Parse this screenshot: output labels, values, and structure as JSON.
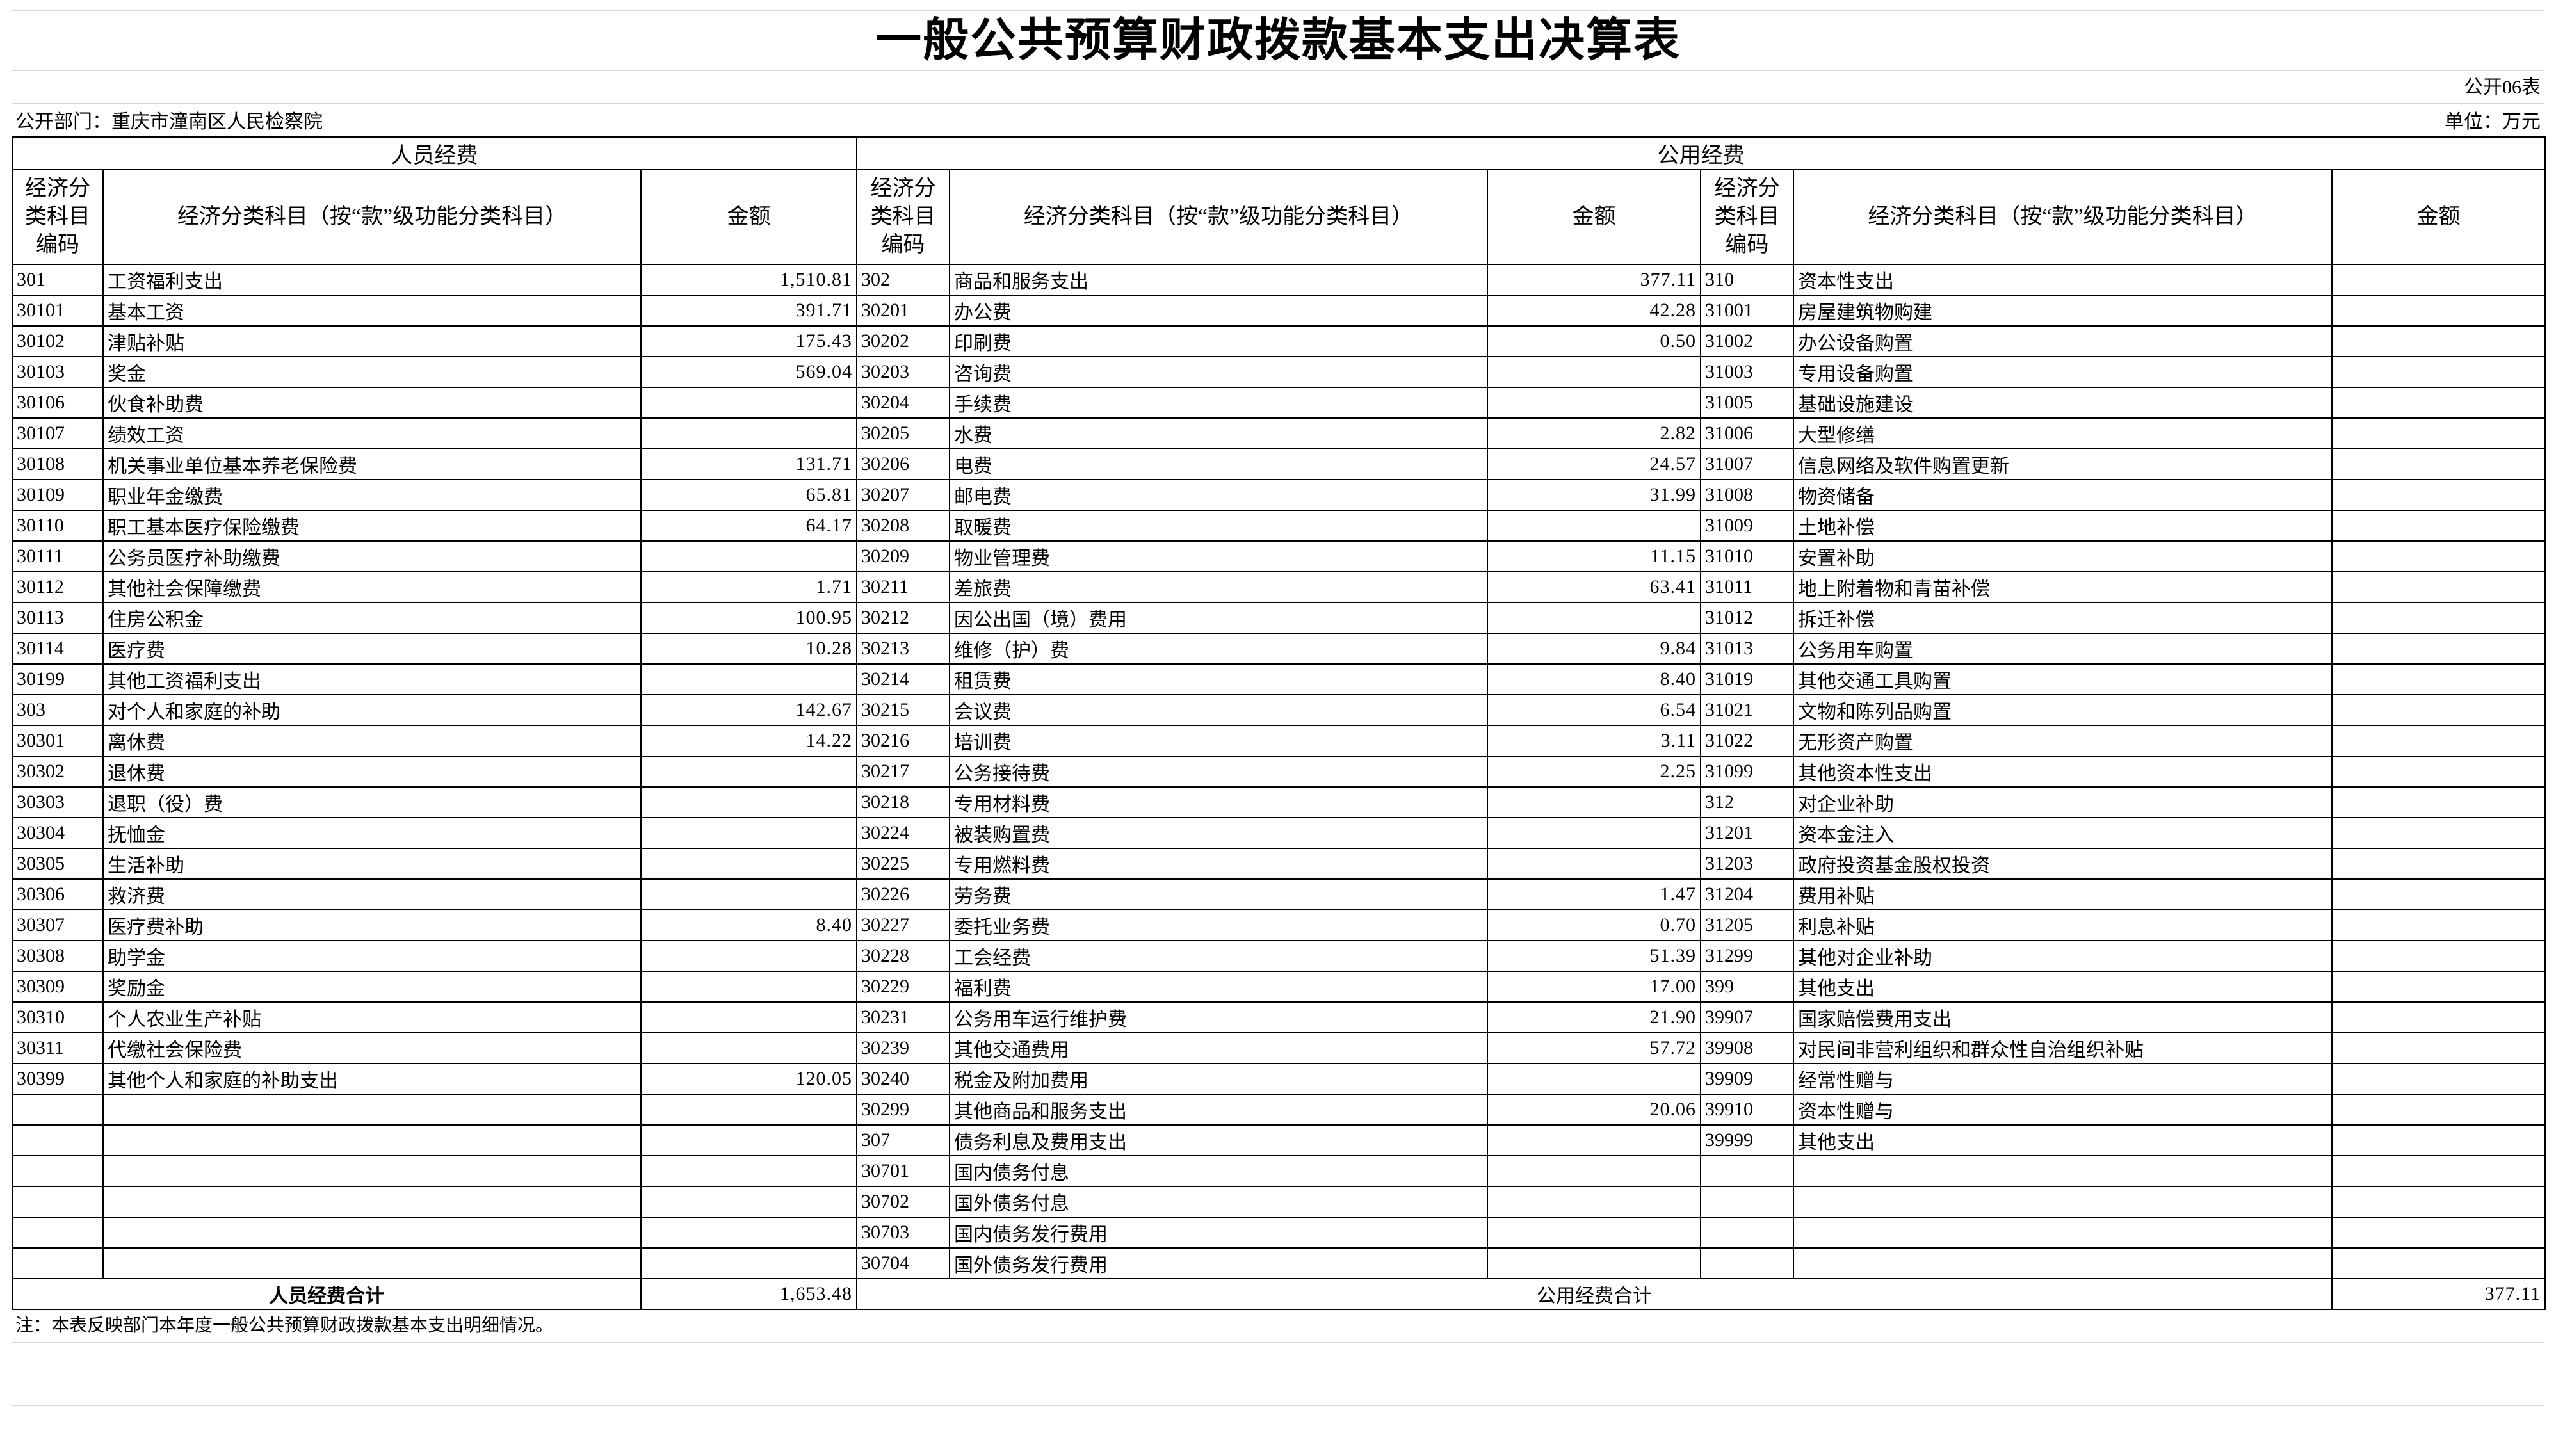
{
  "title": "一般公共预算财政拨款基本支出决算表",
  "table_no": "公开06表",
  "department": "公开部门：重庆市潼南区人民检察院",
  "unit": "单位：万元",
  "sections": {
    "personnel": "人员经费",
    "public": "公用经费"
  },
  "headers": {
    "code": "经济分类科目编码",
    "name": "经济分类科目（按“款”级功能分类科目）",
    "amount": "金额"
  },
  "personnel_rows": [
    {
      "code": "301",
      "name": "工资福利支出",
      "amount": "1,510.81",
      "level": 1
    },
    {
      "code": "30101",
      "name": "基本工资",
      "amount": "391.71",
      "level": 2
    },
    {
      "code": "30102",
      "name": "津贴补贴",
      "amount": "175.43",
      "level": 2
    },
    {
      "code": "30103",
      "name": "奖金",
      "amount": "569.04",
      "level": 2
    },
    {
      "code": "30106",
      "name": "伙食补助费",
      "amount": "",
      "level": 2
    },
    {
      "code": "30107",
      "name": "绩效工资",
      "amount": "",
      "level": 2
    },
    {
      "code": "30108",
      "name": "机关事业单位基本养老保险费",
      "amount": "131.71",
      "level": 2
    },
    {
      "code": "30109",
      "name": "职业年金缴费",
      "amount": "65.81",
      "level": 2
    },
    {
      "code": "30110",
      "name": "职工基本医疗保险缴费",
      "amount": "64.17",
      "level": 2
    },
    {
      "code": "30111",
      "name": "公务员医疗补助缴费",
      "amount": "",
      "level": 2
    },
    {
      "code": "30112",
      "name": "其他社会保障缴费",
      "amount": "1.71",
      "level": 2
    },
    {
      "code": "30113",
      "name": "住房公积金",
      "amount": "100.95",
      "level": 2
    },
    {
      "code": "30114",
      "name": "医疗费",
      "amount": "10.28",
      "level": 2
    },
    {
      "code": "30199",
      "name": "其他工资福利支出",
      "amount": "",
      "level": 2
    },
    {
      "code": "303",
      "name": "对个人和家庭的补助",
      "amount": "142.67",
      "level": 1
    },
    {
      "code": "30301",
      "name": "离休费",
      "amount": "14.22",
      "level": 2
    },
    {
      "code": "30302",
      "name": "退休费",
      "amount": "",
      "level": 2
    },
    {
      "code": "30303",
      "name": "退职（役）费",
      "amount": "",
      "level": 2
    },
    {
      "code": "30304",
      "name": "抚恤金",
      "amount": "",
      "level": 2
    },
    {
      "code": "30305",
      "name": "生活补助",
      "amount": "",
      "level": 2
    },
    {
      "code": "30306",
      "name": "救济费",
      "amount": "",
      "level": 2
    },
    {
      "code": "30307",
      "name": "医疗费补助",
      "amount": "8.40",
      "level": 2
    },
    {
      "code": "30308",
      "name": "助学金",
      "amount": "",
      "level": 2
    },
    {
      "code": "30309",
      "name": "奖励金",
      "amount": "",
      "level": 2
    },
    {
      "code": "30310",
      "name": "个人农业生产补贴",
      "amount": "",
      "level": 2
    },
    {
      "code": "30311",
      "name": "代缴社会保险费",
      "amount": "",
      "level": 2
    },
    {
      "code": "30399",
      "name": "其他个人和家庭的补助支出",
      "amount": "120.05",
      "level": 2
    }
  ],
  "public_rows_a": [
    {
      "code": "302",
      "name": "商品和服务支出",
      "amount": "377.11",
      "level": 1
    },
    {
      "code": "30201",
      "name": "办公费",
      "amount": "42.28",
      "level": 2
    },
    {
      "code": "30202",
      "name": "印刷费",
      "amount": "0.50",
      "level": 2
    },
    {
      "code": "30203",
      "name": "咨询费",
      "amount": "",
      "level": 2
    },
    {
      "code": "30204",
      "name": "手续费",
      "amount": "",
      "level": 2
    },
    {
      "code": "30205",
      "name": "水费",
      "amount": "2.82",
      "level": 2
    },
    {
      "code": "30206",
      "name": "电费",
      "amount": "24.57",
      "level": 2
    },
    {
      "code": "30207",
      "name": "邮电费",
      "amount": "31.99",
      "level": 2
    },
    {
      "code": "30208",
      "name": "取暖费",
      "amount": "",
      "level": 2
    },
    {
      "code": "30209",
      "name": "物业管理费",
      "amount": "11.15",
      "level": 2
    },
    {
      "code": "30211",
      "name": "差旅费",
      "amount": "63.41",
      "level": 2
    },
    {
      "code": "30212",
      "name": "因公出国（境）费用",
      "amount": "",
      "level": 2
    },
    {
      "code": "30213",
      "name": "维修（护）费",
      "amount": "9.84",
      "level": 2
    },
    {
      "code": "30214",
      "name": "租赁费",
      "amount": "8.40",
      "level": 2
    },
    {
      "code": "30215",
      "name": "会议费",
      "amount": "6.54",
      "level": 2
    },
    {
      "code": "30216",
      "name": "培训费",
      "amount": "3.11",
      "level": 2
    },
    {
      "code": "30217",
      "name": "公务接待费",
      "amount": "2.25",
      "level": 2
    },
    {
      "code": "30218",
      "name": "专用材料费",
      "amount": "",
      "level": 2
    },
    {
      "code": "30224",
      "name": "被装购置费",
      "amount": "",
      "level": 2
    },
    {
      "code": "30225",
      "name": "专用燃料费",
      "amount": "",
      "level": 2
    },
    {
      "code": "30226",
      "name": "劳务费",
      "amount": "1.47",
      "level": 2
    },
    {
      "code": "30227",
      "name": "委托业务费",
      "amount": "0.70",
      "level": 2
    },
    {
      "code": "30228",
      "name": "工会经费",
      "amount": "51.39",
      "level": 2
    },
    {
      "code": "30229",
      "name": "福利费",
      "amount": "17.00",
      "level": 2
    },
    {
      "code": "30231",
      "name": "公务用车运行维护费",
      "amount": "21.90",
      "level": 2
    },
    {
      "code": "30239",
      "name": "其他交通费用",
      "amount": "57.72",
      "level": 2
    },
    {
      "code": "30240",
      "name": "税金及附加费用",
      "amount": "",
      "level": 2
    },
    {
      "code": "30299",
      "name": "其他商品和服务支出",
      "amount": "20.06",
      "level": 2
    },
    {
      "code": "307",
      "name": "债务利息及费用支出",
      "amount": "",
      "level": 1
    },
    {
      "code": "30701",
      "name": "国内债务付息",
      "amount": "",
      "level": 2
    },
    {
      "code": "30702",
      "name": "国外债务付息",
      "amount": "",
      "level": 2
    },
    {
      "code": "30703",
      "name": "国内债务发行费用",
      "amount": "",
      "level": 2
    },
    {
      "code": "30704",
      "name": "国外债务发行费用",
      "amount": "",
      "level": 2
    }
  ],
  "public_rows_b": [
    {
      "code": "310",
      "name": "资本性支出",
      "amount": "",
      "level": 1
    },
    {
      "code": "31001",
      "name": "房屋建筑物购建",
      "amount": "",
      "level": 2
    },
    {
      "code": "31002",
      "name": "办公设备购置",
      "amount": "",
      "level": 2
    },
    {
      "code": "31003",
      "name": "专用设备购置",
      "amount": "",
      "level": 2
    },
    {
      "code": "31005",
      "name": "基础设施建设",
      "amount": "",
      "level": 2
    },
    {
      "code": "31006",
      "name": "大型修缮",
      "amount": "",
      "level": 2
    },
    {
      "code": "31007",
      "name": "信息网络及软件购置更新",
      "amount": "",
      "level": 2
    },
    {
      "code": "31008",
      "name": "物资储备",
      "amount": "",
      "level": 2
    },
    {
      "code": "31009",
      "name": "土地补偿",
      "amount": "",
      "level": 2
    },
    {
      "code": "31010",
      "name": "安置补助",
      "amount": "",
      "level": 2
    },
    {
      "code": "31011",
      "name": "地上附着物和青苗补偿",
      "amount": "",
      "level": 2
    },
    {
      "code": "31012",
      "name": "拆迁补偿",
      "amount": "",
      "level": 2
    },
    {
      "code": "31013",
      "name": "公务用车购置",
      "amount": "",
      "level": 2
    },
    {
      "code": "31019",
      "name": "其他交通工具购置",
      "amount": "",
      "level": 2
    },
    {
      "code": "31021",
      "name": "文物和陈列品购置",
      "amount": "",
      "level": 2
    },
    {
      "code": "31022",
      "name": "无形资产购置",
      "amount": "",
      "level": 2
    },
    {
      "code": "31099",
      "name": "其他资本性支出",
      "amount": "",
      "level": 2
    },
    {
      "code": "312",
      "name": "对企业补助",
      "amount": "",
      "level": 1
    },
    {
      "code": "31201",
      "name": "资本金注入",
      "amount": "",
      "level": 2
    },
    {
      "code": "31203",
      "name": "政府投资基金股权投资",
      "amount": "",
      "level": 2
    },
    {
      "code": "31204",
      "name": "费用补贴",
      "amount": "",
      "level": 2
    },
    {
      "code": "31205",
      "name": "利息补贴",
      "amount": "",
      "level": 2
    },
    {
      "code": "31299",
      "name": "其他对企业补助",
      "amount": "",
      "level": 2
    },
    {
      "code": "399",
      "name": "其他支出",
      "amount": "",
      "level": 1
    },
    {
      "code": "39907",
      "name": "国家赔偿费用支出",
      "amount": "",
      "level": 1
    },
    {
      "code": "39908",
      "name": "对民间非营利组织和群众性自治组织补贴",
      "amount": "",
      "level": 1
    },
    {
      "code": "39909",
      "name": "经常性赠与",
      "amount": "",
      "level": 1
    },
    {
      "code": "39910",
      "name": "资本性赠与",
      "amount": "",
      "level": 1
    },
    {
      "code": "39999",
      "name": "其他支出",
      "amount": "",
      "level": 1
    }
  ],
  "totals": {
    "personnel_label": "人员经费合计",
    "personnel_amount": "1,653.48",
    "public_label": "公用经费合计",
    "public_amount": "377.11"
  },
  "note": "注：本表反映部门本年度一般公共预算财政拨款基本支出明细情况。"
}
